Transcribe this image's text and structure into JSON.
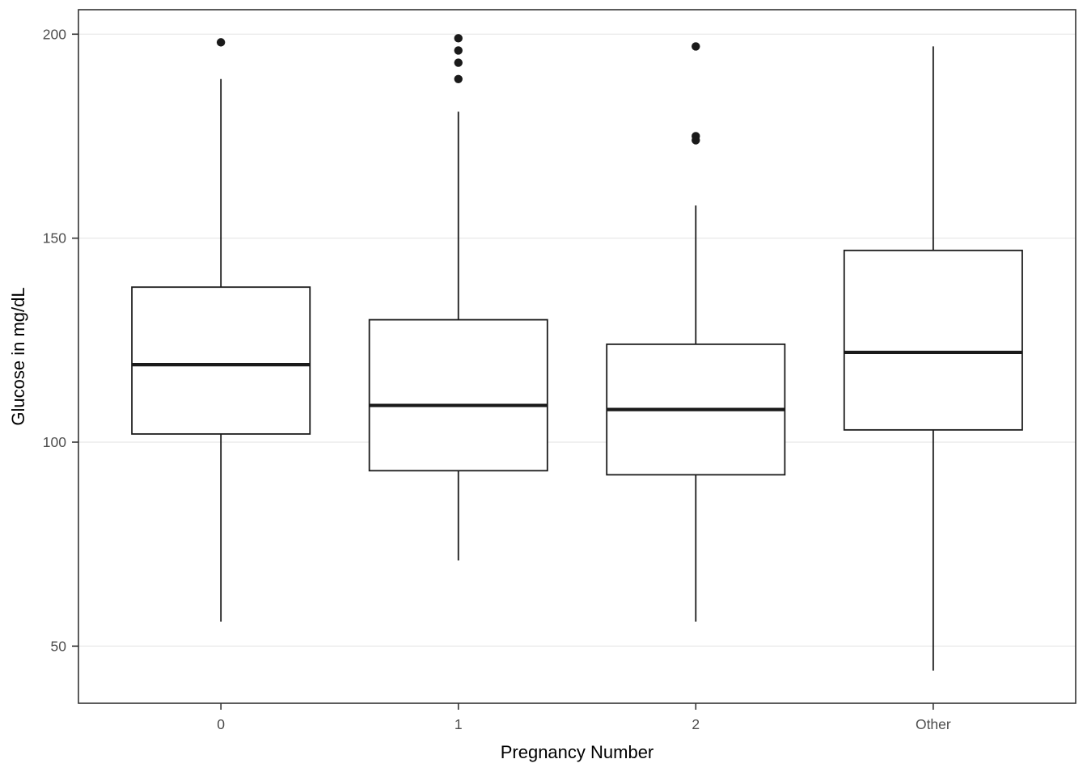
{
  "chart_data": {
    "type": "boxplot",
    "title": "",
    "xlabel": "Pregnancy Number",
    "ylabel": "Glucose in mg/dL",
    "categories": [
      "0",
      "1",
      "2",
      "Other"
    ],
    "y_ticks": [
      50,
      100,
      150,
      200
    ],
    "ylim": [
      36,
      206
    ],
    "grid": "horizontal-major-only",
    "legend": "none",
    "series": [
      {
        "category": "0",
        "whisker_low": 56,
        "q1": 102,
        "median": 119,
        "q3": 138,
        "whisker_high": 189,
        "outliers": [
          198
        ]
      },
      {
        "category": "1",
        "whisker_low": 71,
        "q1": 93,
        "median": 109,
        "q3": 130,
        "whisker_high": 181,
        "outliers": [
          189,
          193,
          196,
          199
        ]
      },
      {
        "category": "2",
        "whisker_low": 56,
        "q1": 92,
        "median": 108,
        "q3": 124,
        "whisker_high": 158,
        "outliers": [
          174,
          175,
          197
        ]
      },
      {
        "category": "Other",
        "whisker_low": 44,
        "q1": 103,
        "median": 122,
        "q3": 147,
        "whisker_high": 197,
        "outliers": []
      }
    ]
  },
  "style": {
    "background_color": "#ffffff",
    "box_fill_color": "#ffffff",
    "box_line_color": "#1a1a1a",
    "grid_color": "#ebebeb",
    "axis_color": "#333333",
    "tick_label_color": "#4d4d4d",
    "title_color": "#000000"
  }
}
